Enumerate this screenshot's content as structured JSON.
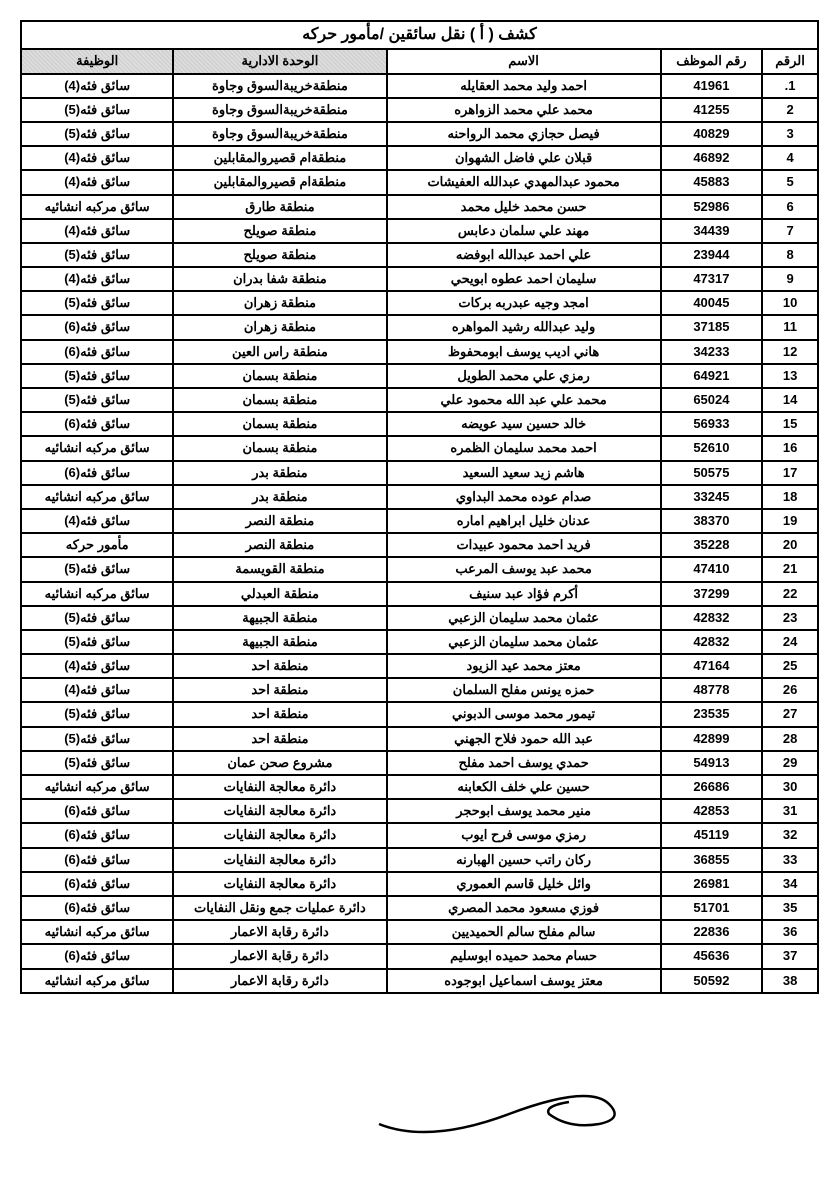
{
  "title": "كشف ( أ ) نقل سائقين /مأمور حركه",
  "columns": [
    "الرقم",
    "رقم الموظف",
    "الاسم",
    "الوحدة الادارية",
    "الوظيفة"
  ],
  "rows": [
    {
      "num": "1.",
      "emp": "41961",
      "name": "احمد وليد محمد العقايله",
      "unit": "منطقةخريبةالسوق وجاوة",
      "job": "سائق فئه(4)"
    },
    {
      "num": "2",
      "emp": "41255",
      "name": "محمد علي محمد الزواهره",
      "unit": "منطقةخريبةالسوق وجاوة",
      "job": "سائق فئه(5)"
    },
    {
      "num": "3",
      "emp": "40829",
      "name": "فيصل حجازي محمد الرواحنه",
      "unit": "منطقةخريبةالسوق وجاوة",
      "job": "سائق فئه(5)"
    },
    {
      "num": "4",
      "emp": "46892",
      "name": "قبلان علي فاضل الشهوان",
      "unit": "منطقةام قصيروالمقابلين",
      "job": "سائق فئه(4)"
    },
    {
      "num": "5",
      "emp": "45883",
      "name": "محمود عبدالمهدي عبدالله العفيشات",
      "unit": "منطقةام قصيروالمقابلين",
      "job": "سائق فئه(4)"
    },
    {
      "num": "6",
      "emp": "52986",
      "name": "حسن محمد خليل محمد",
      "unit": "منطقة طارق",
      "job": "سائق مركبه انشائيه"
    },
    {
      "num": "7",
      "emp": "34439",
      "name": "مهند علي سلمان دعابس",
      "unit": "منطقة صويلح",
      "job": "سائق فئه(4)"
    },
    {
      "num": "8",
      "emp": "23944",
      "name": "علي احمد عبدالله ابوفضه",
      "unit": "منطقة صويلح",
      "job": "سائق فئه(5)"
    },
    {
      "num": "9",
      "emp": "47317",
      "name": "سليمان احمد عطوه ابويحي",
      "unit": "منطقة شفا بدران",
      "job": "سائق فئه(4)"
    },
    {
      "num": "10",
      "emp": "40045",
      "name": "امجد وجيه عبدربه بركات",
      "unit": "منطقة زهران",
      "job": "سائق فئه(5)"
    },
    {
      "num": "11",
      "emp": "37185",
      "name": "وليد عبدالله رشيد المواهره",
      "unit": "منطقة زهران",
      "job": "سائق فئه(6)"
    },
    {
      "num": "12",
      "emp": "34233",
      "name": "هاني اديب يوسف ابومحفوظ",
      "unit": "منطقة راس العين",
      "job": "سائق فئه(6)"
    },
    {
      "num": "13",
      "emp": "64921",
      "name": "رمزي علي محمد الطويل",
      "unit": "منطقة بسمان",
      "job": "سائق فئه(5)"
    },
    {
      "num": "14",
      "emp": "65024",
      "name": "محمد علي عبد الله محمود علي",
      "unit": "منطقة بسمان",
      "job": "سائق فئه(5)"
    },
    {
      "num": "15",
      "emp": "56933",
      "name": "خالد حسين سيد عويضه",
      "unit": "منطقة بسمان",
      "job": "سائق فئه(6)"
    },
    {
      "num": "16",
      "emp": "52610",
      "name": "احمد محمد سليمان الظمره",
      "unit": "منطقة بسمان",
      "job": "سائق مركبه انشائيه"
    },
    {
      "num": "17",
      "emp": "50575",
      "name": "هاشم زيد سعيد السعيد",
      "unit": "منطقة بدر",
      "job": "سائق فئه(6)"
    },
    {
      "num": "18",
      "emp": "33245",
      "name": "صدام عوده محمد البداوي",
      "unit": "منطقة بدر",
      "job": "سائق مركبه انشائيه"
    },
    {
      "num": "19",
      "emp": "38370",
      "name": "عدنان خليل ابراهيم اماره",
      "unit": "منطقة النصر",
      "job": "سائق فئه(4)"
    },
    {
      "num": "20",
      "emp": "35228",
      "name": "فريد احمد محمود عبيدات",
      "unit": "منطقة النصر",
      "job": "مأمور حركه"
    },
    {
      "num": "21",
      "emp": "47410",
      "name": "محمد عبد يوسف المرعب",
      "unit": "منطقة القويسمة",
      "job": "سائق فئه(5)"
    },
    {
      "num": "22",
      "emp": "37299",
      "name": "أكرم فؤاد عبد سنيف",
      "unit": "منطقة العبدلي",
      "job": "سائق مركبه انشائيه"
    },
    {
      "num": "23",
      "emp": "42832",
      "name": "عثمان محمد سليمان الزعبي",
      "unit": "منطقة الجبيهة",
      "job": "سائق فئه(5)"
    },
    {
      "num": "24",
      "emp": "42832",
      "name": "عثمان محمد سليمان الزعبي",
      "unit": "منطقة الجبيهة",
      "job": "سائق فئه(5)"
    },
    {
      "num": "25",
      "emp": "47164",
      "name": "معتز محمد عيد الزيود",
      "unit": "منطقة احد",
      "job": "سائق فئه(4)"
    },
    {
      "num": "26",
      "emp": "48778",
      "name": "حمزه يونس مفلح السلمان",
      "unit": "منطقة احد",
      "job": "سائق فئه(4)"
    },
    {
      "num": "27",
      "emp": "23535",
      "name": "تيمور محمد موسى الدبوني",
      "unit": "منطقة احد",
      "job": "سائق فئه(5)"
    },
    {
      "num": "28",
      "emp": "42899",
      "name": "عبد الله حمود فلاح الجهني",
      "unit": "منطقة احد",
      "job": "سائق فئه(5)"
    },
    {
      "num": "29",
      "emp": "54913",
      "name": "حمدي يوسف احمد مفلح",
      "unit": "مشروع صحن عمان",
      "job": "سائق فئه(5)"
    },
    {
      "num": "30",
      "emp": "26686",
      "name": "حسين علي خلف الكعابنه",
      "unit": "دائرة معالجة النفايات",
      "job": "سائق مركبه انشائيه"
    },
    {
      "num": "31",
      "emp": "42853",
      "name": "منير محمد يوسف ابوحجر",
      "unit": "دائرة معالجة النفايات",
      "job": "سائق فئه(6)"
    },
    {
      "num": "32",
      "emp": "45119",
      "name": "رمزي موسى فرح ايوب",
      "unit": "دائرة معالجة النفايات",
      "job": "سائق فئه(6)"
    },
    {
      "num": "33",
      "emp": "36855",
      "name": "ركان راتب حسين الهبارنه",
      "unit": "دائرة معالجة النفايات",
      "job": "سائق فئه(6)"
    },
    {
      "num": "34",
      "emp": "26981",
      "name": "وائل خليل قاسم العموري",
      "unit": "دائرة معالجة النفايات",
      "job": "سائق فئه(6)"
    },
    {
      "num": "35",
      "emp": "51701",
      "name": "فوزي مسعود محمد المصري",
      "unit": "دائرة عمليات جمع ونقل النفايات",
      "job": "سائق فئه(6)"
    },
    {
      "num": "36",
      "emp": "22836",
      "name": "سالم مفلح سالم الحميديين",
      "unit": "دائرة رقابة الاعمار",
      "job": "سائق مركبه انشائيه"
    },
    {
      "num": "37",
      "emp": "45636",
      "name": "حسام محمد حميده ابوسليم",
      "unit": "دائرة رقابة الاعمار",
      "job": "سائق فئه(6)"
    },
    {
      "num": "38",
      "emp": "50592",
      "name": "معتز يوسف اسماعيل ابوجوده",
      "unit": "دائرة رقابة الاعمار",
      "job": "سائق مركبه انشائيه"
    }
  ],
  "styling": {
    "border_color": "#000",
    "header_bg": "#ddd",
    "font_size_body": 13,
    "font_size_title": 16,
    "col_widths": {
      "num": 45,
      "emp": 90,
      "name": 260,
      "unit": 200,
      "job": 140
    }
  }
}
